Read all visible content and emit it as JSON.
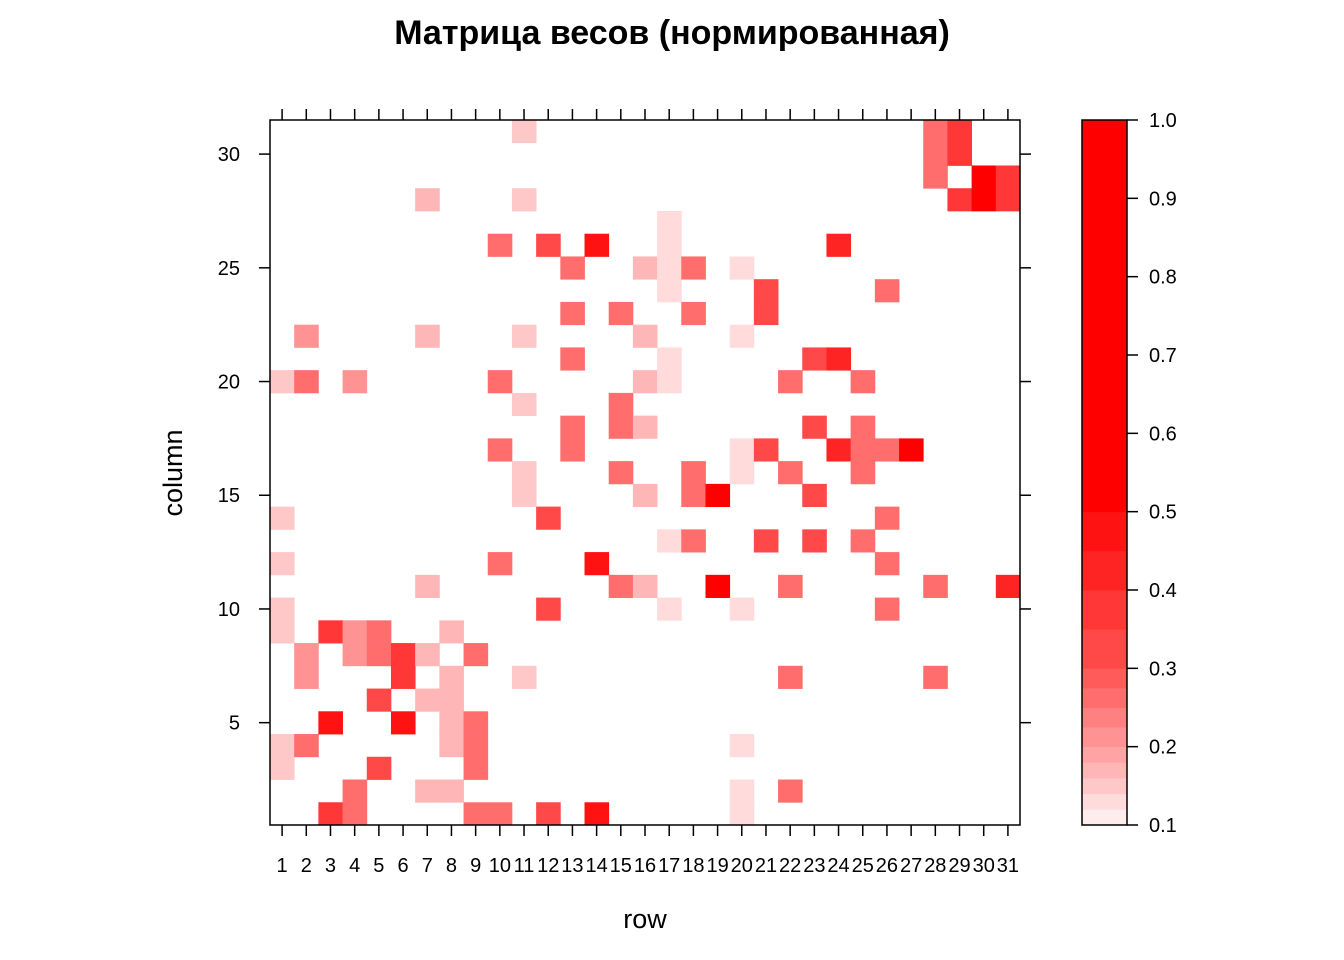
{
  "chart_data": {
    "type": "heatmap",
    "title": "Матрица весов (нормированная)",
    "xlabel": "row",
    "ylabel": "column",
    "x_categories": [
      "1",
      "2",
      "3",
      "4",
      "5",
      "6",
      "7",
      "8",
      "9",
      "10",
      "11",
      "12",
      "13",
      "14",
      "15",
      "16",
      "17",
      "18",
      "19",
      "20",
      "21",
      "22",
      "23",
      "24",
      "25",
      "26",
      "27",
      "28",
      "29",
      "30",
      "31"
    ],
    "y_range": [
      1,
      31
    ],
    "y_ticks": [
      5,
      10,
      15,
      20,
      25,
      30
    ],
    "colorbar": {
      "range": [
        0.1,
        1.0
      ],
      "ticks": [
        "0.1",
        "0.2",
        "0.3",
        "0.4",
        "0.5",
        "0.6",
        "0.7",
        "0.8",
        "0.9",
        "1.0"
      ],
      "low_color": "#ffffff",
      "high_color": "#ff0000",
      "breaks": [
        0.1,
        0.12,
        0.14,
        0.16,
        0.18,
        0.2,
        0.225,
        0.25,
        0.275,
        0.3,
        0.35,
        0.4,
        0.45,
        0.5,
        1.0
      ]
    },
    "cells": [
      [
        1,
        20,
        0.15
      ],
      [
        1,
        14,
        0.15
      ],
      [
        1,
        12,
        0.15
      ],
      [
        1,
        10,
        0.15
      ],
      [
        1,
        9,
        0.15
      ],
      [
        1,
        4,
        0.15
      ],
      [
        1,
        3,
        0.15
      ],
      [
        2,
        22,
        0.22
      ],
      [
        2,
        20,
        0.25
      ],
      [
        2,
        8,
        0.22
      ],
      [
        2,
        7,
        0.22
      ],
      [
        2,
        4,
        0.25
      ],
      [
        3,
        9,
        0.35
      ],
      [
        3,
        5,
        0.45
      ],
      [
        3,
        1,
        0.35
      ],
      [
        4,
        9,
        0.22
      ],
      [
        4,
        8,
        0.22
      ],
      [
        4,
        20,
        0.22
      ],
      [
        4,
        2,
        0.25
      ],
      [
        4,
        1,
        0.25
      ],
      [
        5,
        9,
        0.25
      ],
      [
        5,
        8,
        0.25
      ],
      [
        5,
        6,
        0.3
      ],
      [
        5,
        3,
        0.3
      ],
      [
        6,
        8,
        0.35
      ],
      [
        6,
        7,
        0.35
      ],
      [
        6,
        5,
        0.45
      ],
      [
        7,
        28,
        0.17
      ],
      [
        7,
        22,
        0.17
      ],
      [
        7,
        11,
        0.17
      ],
      [
        7,
        8,
        0.17
      ],
      [
        7,
        6,
        0.17
      ],
      [
        7,
        2,
        0.17
      ],
      [
        8,
        9,
        0.17
      ],
      [
        8,
        7,
        0.17
      ],
      [
        8,
        6,
        0.17
      ],
      [
        8,
        5,
        0.17
      ],
      [
        8,
        4,
        0.17
      ],
      [
        8,
        2,
        0.17
      ],
      [
        9,
        8,
        0.25
      ],
      [
        9,
        5,
        0.25
      ],
      [
        9,
        4,
        0.25
      ],
      [
        9,
        3,
        0.25
      ],
      [
        9,
        1,
        0.25
      ],
      [
        10,
        26,
        0.25
      ],
      [
        10,
        20,
        0.25
      ],
      [
        10,
        17,
        0.25
      ],
      [
        10,
        12,
        0.25
      ],
      [
        10,
        1,
        0.25
      ],
      [
        11,
        31,
        0.15
      ],
      [
        11,
        28,
        0.15
      ],
      [
        11,
        22,
        0.15
      ],
      [
        11,
        19,
        0.15
      ],
      [
        11,
        16,
        0.15
      ],
      [
        11,
        15,
        0.15
      ],
      [
        11,
        7,
        0.15
      ],
      [
        12,
        26,
        0.3
      ],
      [
        12,
        14,
        0.3
      ],
      [
        12,
        10,
        0.3
      ],
      [
        12,
        1,
        0.3
      ],
      [
        13,
        25,
        0.25
      ],
      [
        13,
        23,
        0.25
      ],
      [
        13,
        21,
        0.25
      ],
      [
        13,
        18,
        0.25
      ],
      [
        13,
        17,
        0.25
      ],
      [
        14,
        26,
        0.45
      ],
      [
        14,
        12,
        0.45
      ],
      [
        14,
        1,
        0.45
      ],
      [
        15,
        23,
        0.25
      ],
      [
        15,
        19,
        0.25
      ],
      [
        15,
        18,
        0.25
      ],
      [
        15,
        16,
        0.25
      ],
      [
        15,
        11,
        0.25
      ],
      [
        16,
        25,
        0.17
      ],
      [
        16,
        22,
        0.17
      ],
      [
        16,
        20,
        0.17
      ],
      [
        16,
        18,
        0.17
      ],
      [
        16,
        15,
        0.17
      ],
      [
        16,
        11,
        0.17
      ],
      [
        17,
        27,
        0.12
      ],
      [
        17,
        26,
        0.12
      ],
      [
        17,
        25,
        0.12
      ],
      [
        17,
        24,
        0.12
      ],
      [
        17,
        21,
        0.12
      ],
      [
        17,
        20,
        0.12
      ],
      [
        17,
        13,
        0.12
      ],
      [
        17,
        10,
        0.12
      ],
      [
        18,
        25,
        0.25
      ],
      [
        18,
        23,
        0.25
      ],
      [
        18,
        16,
        0.25
      ],
      [
        18,
        15,
        0.25
      ],
      [
        18,
        13,
        0.25
      ],
      [
        19,
        15,
        0.5
      ],
      [
        19,
        11,
        0.5
      ],
      [
        20,
        25,
        0.12
      ],
      [
        20,
        22,
        0.12
      ],
      [
        20,
        17,
        0.12
      ],
      [
        20,
        16,
        0.12
      ],
      [
        20,
        10,
        0.12
      ],
      [
        20,
        4,
        0.12
      ],
      [
        20,
        2,
        0.12
      ],
      [
        20,
        1,
        0.12
      ],
      [
        21,
        24,
        0.3
      ],
      [
        21,
        23,
        0.3
      ],
      [
        21,
        17,
        0.3
      ],
      [
        21,
        13,
        0.3
      ],
      [
        22,
        20,
        0.25
      ],
      [
        22,
        16,
        0.25
      ],
      [
        22,
        11,
        0.25
      ],
      [
        22,
        7,
        0.25
      ],
      [
        22,
        2,
        0.25
      ],
      [
        23,
        21,
        0.3
      ],
      [
        23,
        18,
        0.3
      ],
      [
        23,
        15,
        0.3
      ],
      [
        23,
        13,
        0.3
      ],
      [
        24,
        26,
        0.4
      ],
      [
        24,
        21,
        0.4
      ],
      [
        24,
        17,
        0.4
      ],
      [
        25,
        20,
        0.25
      ],
      [
        25,
        18,
        0.25
      ],
      [
        25,
        17,
        0.25
      ],
      [
        25,
        16,
        0.25
      ],
      [
        25,
        13,
        0.25
      ],
      [
        26,
        24,
        0.25
      ],
      [
        26,
        17,
        0.25
      ],
      [
        26,
        14,
        0.25
      ],
      [
        26,
        12,
        0.25
      ],
      [
        26,
        10,
        0.25
      ],
      [
        27,
        17,
        0.5
      ],
      [
        28,
        31,
        0.25
      ],
      [
        28,
        30,
        0.25
      ],
      [
        28,
        29,
        0.25
      ],
      [
        28,
        11,
        0.25
      ],
      [
        28,
        7,
        0.25
      ],
      [
        29,
        31,
        0.35
      ],
      [
        29,
        30,
        0.35
      ],
      [
        29,
        28,
        0.35
      ],
      [
        30,
        29,
        0.5
      ],
      [
        30,
        28,
        0.5
      ],
      [
        31,
        29,
        0.35
      ],
      [
        31,
        28,
        0.35
      ],
      [
        31,
        11,
        0.4
      ]
    ]
  }
}
